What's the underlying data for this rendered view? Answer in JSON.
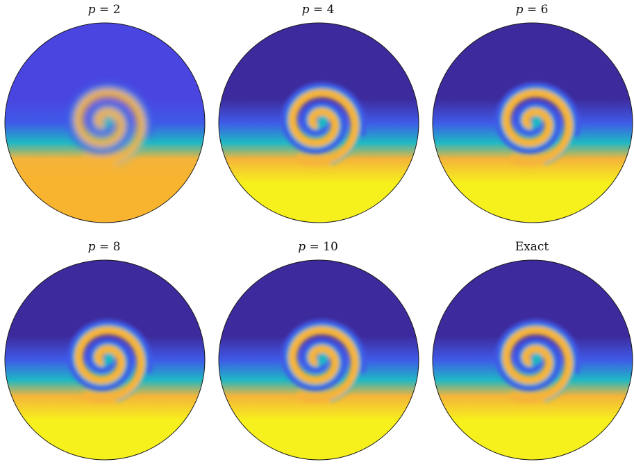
{
  "panels": [
    {
      "id": "p2",
      "var": "p",
      "rel": " = ",
      "num": "2",
      "label": ""
    },
    {
      "id": "p4",
      "var": "p",
      "rel": " = ",
      "num": "4",
      "label": ""
    },
    {
      "id": "p6",
      "var": "p",
      "rel": " = ",
      "num": "6",
      "label": ""
    },
    {
      "id": "p8",
      "var": "p",
      "rel": " = ",
      "num": "8",
      "label": ""
    },
    {
      "id": "p10",
      "var": "p",
      "rel": " = ",
      "num": "10",
      "label": ""
    },
    {
      "id": "exact",
      "var": "",
      "rel": "",
      "num": "",
      "label": "Exact"
    }
  ],
  "colors": {
    "low": "#3d2a9c",
    "mid_blue": "#3f5ae8",
    "teal": "#1fb8c4",
    "orange": "#f5b43a",
    "high": "#f6f01c",
    "low_p2": "#4a45e0",
    "high_p2": "#f8b42e",
    "outline": "#1a1a1a"
  }
}
